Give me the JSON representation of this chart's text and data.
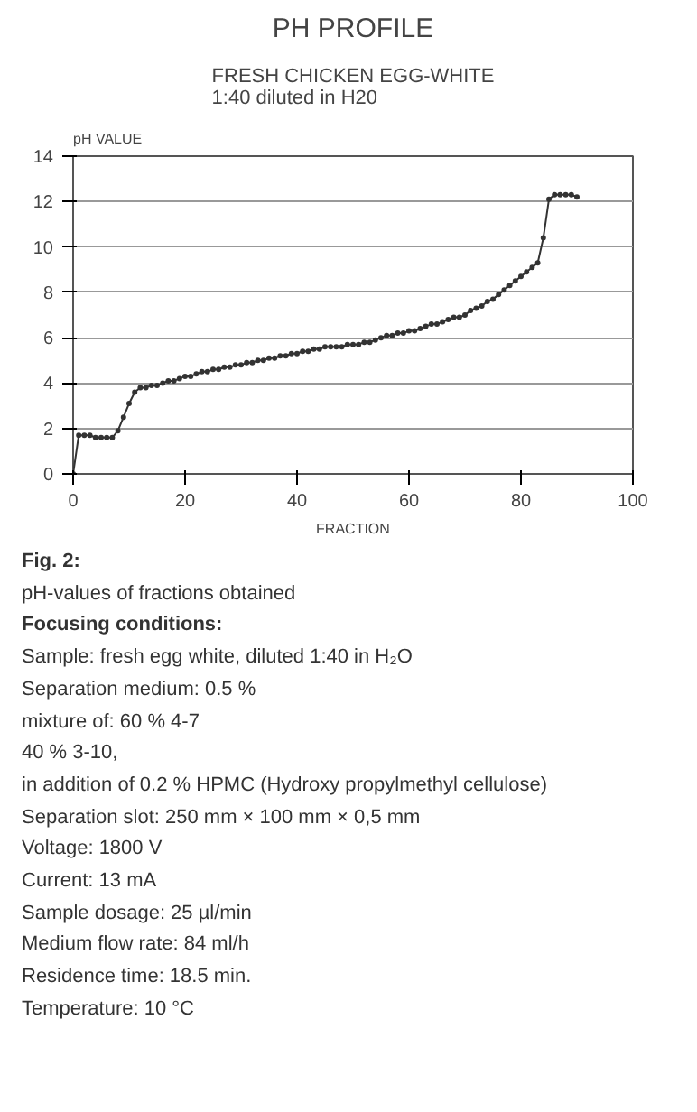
{
  "chart_data": {
    "type": "line",
    "title": "PH PROFILE",
    "subtitle": "FRESH CHICKEN EGG-WHITE\n1:40 diluted in H20",
    "xlabel": "FRACTION",
    "ylabel": "pH VALUE",
    "x": [
      0,
      1,
      2,
      3,
      4,
      5,
      6,
      7,
      8,
      9,
      10,
      11,
      12,
      13,
      14,
      15,
      16,
      17,
      18,
      19,
      20,
      21,
      22,
      23,
      24,
      25,
      26,
      27,
      28,
      29,
      30,
      31,
      32,
      33,
      34,
      35,
      36,
      37,
      38,
      39,
      40,
      41,
      42,
      43,
      44,
      45,
      46,
      47,
      48,
      49,
      50,
      51,
      52,
      53,
      54,
      55,
      56,
      57,
      58,
      59,
      60,
      61,
      62,
      63,
      64,
      65,
      66,
      67,
      68,
      69,
      70,
      71,
      72,
      73,
      74,
      75,
      76,
      77,
      78,
      79,
      80,
      81,
      82,
      83,
      84,
      85,
      86,
      87,
      88,
      89,
      90
    ],
    "series": [
      {
        "color": "#333333",
        "values": [
          0,
          1.7,
          1.7,
          1.7,
          1.6,
          1.6,
          1.6,
          1.6,
          1.9,
          2.5,
          3.1,
          3.6,
          3.8,
          3.8,
          3.9,
          3.9,
          4.0,
          4.1,
          4.1,
          4.2,
          4.3,
          4.3,
          4.4,
          4.5,
          4.5,
          4.6,
          4.6,
          4.7,
          4.7,
          4.8,
          4.8,
          4.9,
          4.9,
          5.0,
          5.0,
          5.1,
          5.1,
          5.2,
          5.2,
          5.3,
          5.3,
          5.4,
          5.4,
          5.5,
          5.5,
          5.6,
          5.6,
          5.6,
          5.6,
          5.7,
          5.7,
          5.7,
          5.8,
          5.8,
          5.9,
          6.0,
          6.1,
          6.1,
          6.2,
          6.2,
          6.3,
          6.3,
          6.4,
          6.5,
          6.6,
          6.6,
          6.7,
          6.8,
          6.9,
          6.9,
          7.0,
          7.2,
          7.3,
          7.4,
          7.6,
          7.7,
          7.9,
          8.1,
          8.3,
          8.5,
          8.7,
          8.9,
          9.1,
          9.3,
          10.4,
          12.1,
          12.3,
          12.3,
          12.3,
          12.3,
          12.2
        ]
      }
    ],
    "xlim": [
      0,
      100
    ],
    "xticks": [
      0,
      20,
      40,
      60,
      80,
      100
    ],
    "ylim": [
      0,
      14
    ],
    "yticks": [
      0,
      2,
      4,
      6,
      8,
      10,
      12,
      14
    ],
    "grid": "y",
    "marker": "circle",
    "line_style": "solid",
    "annotations": [
      "Fig. 2:",
      "pH-values of fractions obtained",
      "Focusing conditions:",
      "Sample: fresh egg white, diluted 1:40 in H₂O",
      "Separation medium: 0.5 %",
      "mixture of: 60 % 4-7",
      "40 % 3-10,",
      "in addition of 0.2 % HPMC (Hydroxy propylmethyl cellulose)",
      "Separation slot: 250 mm × 100 mm × 0,5 mm",
      "Voltage: 1800 V",
      "Current: 13 mA",
      "Sample dosage: 25 µl/min",
      "Medium flow rate: 84 ml/h",
      "Residence time: 18.5 min.",
      "Temperature: 10 °C"
    ]
  }
}
